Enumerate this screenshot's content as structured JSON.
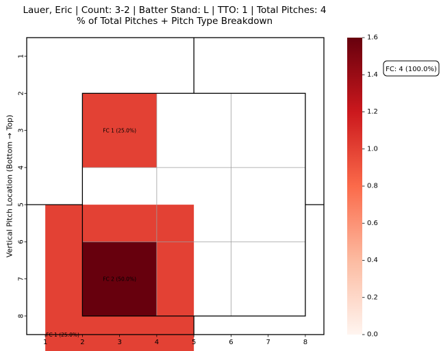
{
  "title_line1": "Lauer, Eric | Count: 3-2 | Batter Stand: L | TTO: 1 | Total Pitches: 4",
  "title_line2": "% of Total Pitches + Pitch Type Breakdown",
  "legend_note": "FC: 4 (100.0%)",
  "colors": {
    "colormap": "Reds",
    "low": "#fff5f0",
    "mid1": "#fcbba1",
    "mid2": "#fb6a4a",
    "high": "#cb181d",
    "max": "#67000d",
    "grid_line": "#9e9e9e",
    "strike_zone": "#000000"
  },
  "chart_data": {
    "type": "heatmap",
    "title": "Lauer, Eric | Count: 3-2 | Batter Stand: L | TTO: 1 | Total Pitches: 4\n% of Total Pitches + Pitch Type Breakdown",
    "xlabel": "",
    "ylabel": "Vertical Pitch Location (Bottom → Top)",
    "x_ticks": [
      "1",
      "2",
      "3",
      "4",
      "5",
      "6",
      "7",
      "8"
    ],
    "y_ticks": [
      "1",
      "2",
      "3",
      "4",
      "5",
      "6",
      "7",
      "8"
    ],
    "cells": [
      {
        "zone": "upper-inner",
        "x_range": [
          2,
          3
        ],
        "y_range": [
          2,
          3
        ],
        "value": 1,
        "label": "FC 1 (25.0%)"
      },
      {
        "zone": "lower-inner",
        "x_range": [
          2,
          3
        ],
        "y_range": [
          6,
          7
        ],
        "value": 2,
        "label": "FC 2 (50.0%)"
      },
      {
        "zone": "lower-left-outer",
        "x_range": [
          1,
          4
        ],
        "y_range": [
          5,
          8
        ],
        "value": 1,
        "label": "FC 1 (25.0%)"
      }
    ],
    "colorbar": {
      "min": 0.0,
      "max": 1.6,
      "ticks": [
        "0.0",
        "0.2",
        "0.4",
        "0.6",
        "0.8",
        "1.0",
        "1.2",
        "1.4",
        "1.6"
      ]
    },
    "legend": {
      "entries": [
        "FC: 4 (100.0%)"
      ],
      "placement": "right"
    }
  }
}
